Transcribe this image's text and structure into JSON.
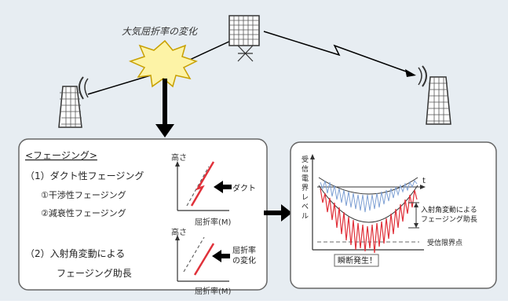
{
  "top": {
    "refraction_change": "大気屈折率の変化"
  },
  "left_panel": {
    "title": "<フェージング>",
    "item1": "（1）ダクト性フェージング",
    "item1a": "①干渉性フェージング",
    "item1b": "②減衰性フェージング",
    "item2_line1": "（2）入射角変動による",
    "item2_line2": "フェージング助長",
    "chart1": {
      "ylabel": "高さ",
      "xlabel": "屈折率(M)",
      "annotation": "ダクト"
    },
    "chart2": {
      "ylabel": "高さ",
      "xlabel": "屈折率(M)",
      "annotation_line1": "屈折率",
      "annotation_line2": "の変化"
    }
  },
  "right_panel": {
    "ylabel": "受信電界レベル",
    "xlabel": "t",
    "annotation_line1": "入射角変動による",
    "annotation_line2": "フェージング助長",
    "threshold_label": "受信限界点",
    "outage_label": "瞬断発生！"
  },
  "colors": {
    "background": "#e7edf2",
    "signal_red": "#e0313a",
    "signal_blue": "#7ea0d4",
    "burst_fill": "#fdf3a6",
    "burst_stroke": "#c8a000"
  }
}
